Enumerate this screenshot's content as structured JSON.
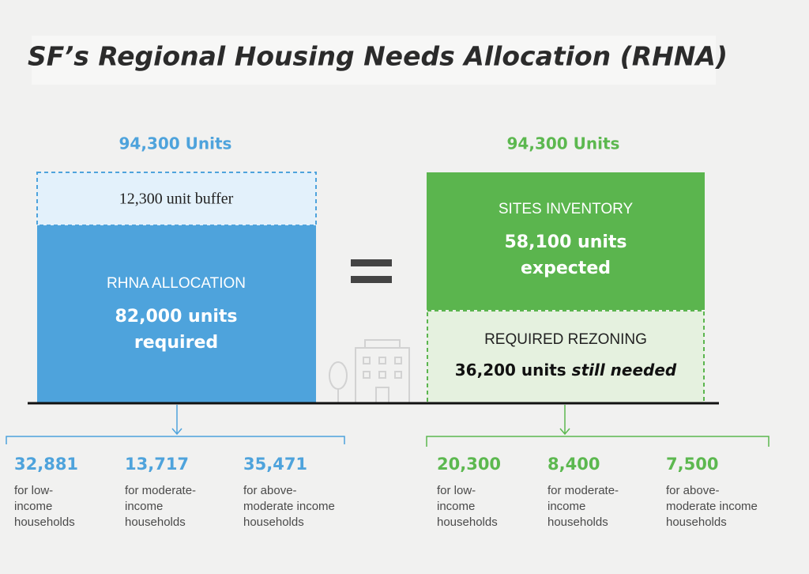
{
  "title": "SF’s Regional Housing Needs Allocation (RHNA)",
  "left": {
    "total": "94,300 Units",
    "buffer": "12,300 unit buffer",
    "label": "RHNA ALLOCATION",
    "amount_lines": [
      "82,000 units",
      "required"
    ],
    "breakdown": [
      {
        "number": "32,881",
        "lines": [
          "for low-",
          "income",
          "households"
        ]
      },
      {
        "number": "13,717",
        "lines": [
          "for moderate-",
          "income",
          "households"
        ]
      },
      {
        "number": "35,471",
        "lines": [
          "for above-",
          "moderate income",
          "households"
        ]
      }
    ]
  },
  "right": {
    "total": "94,300 Units",
    "label": "SITES INVENTORY",
    "amount_lines": [
      "58,100 units",
      "expected"
    ],
    "rezoning_label": "REQUIRED REZONING",
    "rezoning_amount": "36,200 units",
    "rezoning_note": "still needed",
    "breakdown": [
      {
        "number": "20,300",
        "lines": [
          "for low-",
          "income",
          "households"
        ]
      },
      {
        "number": "8,400",
        "lines": [
          "for moderate-",
          "income",
          "households"
        ]
      },
      {
        "number": "7,500",
        "lines": [
          "for above-",
          "moderate income",
          "households"
        ]
      }
    ]
  }
}
